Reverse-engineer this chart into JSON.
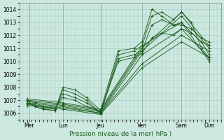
{
  "xlabel": "Pression niveau de la mer( hPa )",
  "ylim": [
    1005.5,
    1014.5
  ],
  "yticks": [
    1006,
    1007,
    1008,
    1009,
    1010,
    1011,
    1012,
    1013,
    1014
  ],
  "day_labels": [
    "Mer",
    "Lun",
    "Jeu",
    "Ven",
    "Sam",
    "Dim"
  ],
  "day_positions": [
    0.05,
    0.22,
    0.41,
    0.62,
    0.82,
    0.96
  ],
  "background_color": "#cce8e0",
  "grid_color": "#a0c8c0",
  "line_color": "#1a5c1a",
  "marker_color": "#1a5c1a",
  "series": [
    {
      "x": [
        0.04,
        0.08,
        0.12,
        0.18,
        0.22,
        0.28,
        0.34,
        0.41,
        0.5,
        0.58,
        0.62,
        0.67,
        0.72,
        0.78,
        0.82,
        0.87,
        0.92,
        0.96
      ],
      "y": [
        1006.8,
        1006.5,
        1006.3,
        1006.2,
        1007.8,
        1007.5,
        1007.0,
        1006.0,
        1010.5,
        1010.8,
        1011.2,
        1013.5,
        1013.8,
        1013.2,
        1013.8,
        1013.0,
        1011.0,
        1010.3
      ]
    },
    {
      "x": [
        0.04,
        0.08,
        0.12,
        0.18,
        0.22,
        0.28,
        0.34,
        0.41,
        0.5,
        0.58,
        0.62,
        0.67,
        0.72,
        0.78,
        0.82,
        0.87,
        0.92,
        0.96
      ],
      "y": [
        1006.9,
        1006.6,
        1006.4,
        1006.3,
        1007.5,
        1007.2,
        1006.8,
        1006.0,
        1010.2,
        1010.5,
        1010.8,
        1012.8,
        1013.2,
        1012.8,
        1012.8,
        1012.5,
        1011.8,
        1011.5
      ]
    },
    {
      "x": [
        0.04,
        0.08,
        0.12,
        0.18,
        0.22,
        0.28,
        0.34,
        0.41,
        0.5,
        0.58,
        0.62,
        0.67,
        0.72,
        0.78,
        0.82,
        0.87,
        0.92,
        0.96
      ],
      "y": [
        1006.8,
        1006.5,
        1006.3,
        1006.2,
        1008.0,
        1007.8,
        1007.2,
        1006.2,
        1010.8,
        1011.0,
        1011.5,
        1014.0,
        1013.5,
        1012.8,
        1013.0,
        1012.2,
        1011.5,
        1010.5
      ]
    },
    {
      "x": [
        0.04,
        0.08,
        0.12,
        0.18,
        0.22,
        0.28,
        0.34,
        0.41,
        0.5,
        0.58,
        0.62,
        0.67,
        0.72,
        0.78,
        0.82,
        0.87,
        0.92,
        0.96
      ],
      "y": [
        1007.0,
        1006.8,
        1006.5,
        1006.4,
        1007.2,
        1007.0,
        1006.5,
        1006.1,
        1010.0,
        1010.3,
        1010.6,
        1011.8,
        1012.2,
        1012.0,
        1012.5,
        1012.2,
        1011.5,
        1011.2
      ]
    },
    {
      "x": [
        0.04,
        0.22,
        0.41,
        0.62,
        0.82,
        0.96
      ],
      "y": [
        1006.8,
        1006.5,
        1006.0,
        1010.5,
        1012.5,
        1010.2
      ]
    },
    {
      "x": [
        0.04,
        0.22,
        0.41,
        0.62,
        0.82,
        0.96
      ],
      "y": [
        1006.9,
        1006.6,
        1006.1,
        1010.8,
        1013.5,
        1011.0
      ]
    },
    {
      "x": [
        0.04,
        0.22,
        0.41,
        0.62,
        0.82,
        0.96
      ],
      "y": [
        1007.0,
        1006.7,
        1006.2,
        1011.0,
        1013.8,
        1011.2
      ]
    },
    {
      "x": [
        0.04,
        0.22,
        0.41,
        0.62,
        0.82,
        0.96
      ],
      "y": [
        1007.1,
        1006.8,
        1006.3,
        1011.2,
        1013.0,
        1010.0
      ]
    },
    {
      "x": [
        0.04,
        0.22,
        0.41,
        0.62,
        0.82,
        0.96
      ],
      "y": [
        1006.7,
        1006.4,
        1006.0,
        1009.8,
        1012.0,
        1010.8
      ]
    },
    {
      "x": [
        0.04,
        0.22,
        0.41,
        0.62,
        0.82,
        0.96
      ],
      "y": [
        1006.6,
        1006.3,
        1005.9,
        1009.5,
        1011.5,
        1010.3
      ]
    }
  ],
  "xlim": [
    0.0,
    1.02
  ]
}
